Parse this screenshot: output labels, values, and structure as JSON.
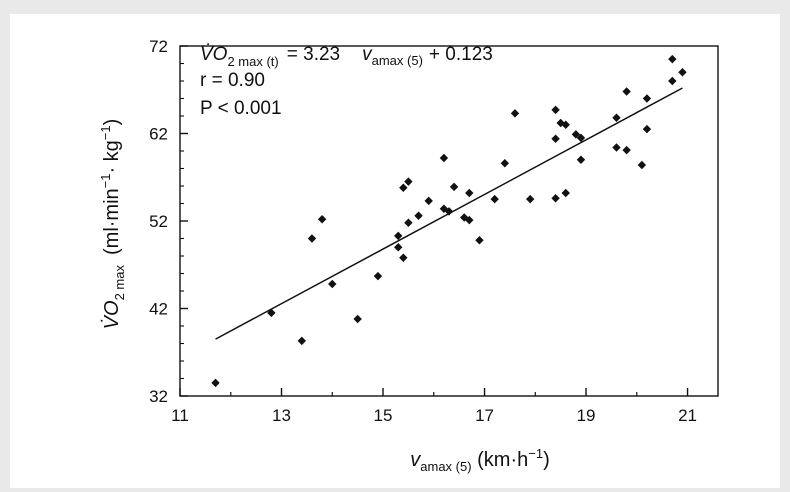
{
  "chart_data": {
    "type": "scatter",
    "title": "",
    "xlabel": {
      "main": "v",
      "sub": "amax (5)",
      "unit": " (km·h",
      "sup": "−1",
      "close": ")"
    },
    "ylabel": {
      "main": "V̇O",
      "sub": "2 max",
      "unit": "(ml·min",
      "sup1": "−1",
      "mid": "· kg",
      "sup2": "−1",
      "close": ")"
    },
    "xlim": [
      11,
      21.6
    ],
    "ylim": [
      32,
      72
    ],
    "xticks": [
      11,
      13,
      15,
      17,
      19,
      21
    ],
    "yticks": [
      32,
      42,
      52,
      62,
      72
    ],
    "grid": false,
    "equation": {
      "lhs": "V̇O",
      "lhs_sub": "2 max (t)",
      "eq": "= 3.23",
      "var": "v",
      "var_sub": "amax (5)",
      "rhs": "+ 0.123"
    },
    "r_text": "r = 0.90",
    "p_text": "P < 0.001",
    "regression_line": {
      "x": [
        11.7,
        20.9
      ],
      "y": [
        38.5,
        67.2
      ]
    },
    "points": [
      [
        11.7,
        33.5
      ],
      [
        12.8,
        41.5
      ],
      [
        13.4,
        38.3
      ],
      [
        13.6,
        50.0
      ],
      [
        13.8,
        52.2
      ],
      [
        14.0,
        44.8
      ],
      [
        14.5,
        40.8
      ],
      [
        14.9,
        45.7
      ],
      [
        15.3,
        50.3
      ],
      [
        15.3,
        49.0
      ],
      [
        15.4,
        47.8
      ],
      [
        15.4,
        55.8
      ],
      [
        15.5,
        56.5
      ],
      [
        15.5,
        51.8
      ],
      [
        15.7,
        52.6
      ],
      [
        15.9,
        54.3
      ],
      [
        16.2,
        59.2
      ],
      [
        16.2,
        53.4
      ],
      [
        16.3,
        53.1
      ],
      [
        16.4,
        55.9
      ],
      [
        16.6,
        52.4
      ],
      [
        16.7,
        52.1
      ],
      [
        16.7,
        55.2
      ],
      [
        16.9,
        49.8
      ],
      [
        17.2,
        54.5
      ],
      [
        17.4,
        58.6
      ],
      [
        17.6,
        64.3
      ],
      [
        17.9,
        54.5
      ],
      [
        18.4,
        54.6
      ],
      [
        18.4,
        64.7
      ],
      [
        18.4,
        61.4
      ],
      [
        18.5,
        63.2
      ],
      [
        18.6,
        63.0
      ],
      [
        18.6,
        55.2
      ],
      [
        18.8,
        61.9
      ],
      [
        18.9,
        61.5
      ],
      [
        18.9,
        59.0
      ],
      [
        19.6,
        60.4
      ],
      [
        19.6,
        63.8
      ],
      [
        19.8,
        60.1
      ],
      [
        19.8,
        66.8
      ],
      [
        20.1,
        58.4
      ],
      [
        20.2,
        66.0
      ],
      [
        20.2,
        62.5
      ],
      [
        20.7,
        68.0
      ],
      [
        20.7,
        70.5
      ],
      [
        20.9,
        69.0
      ]
    ]
  }
}
